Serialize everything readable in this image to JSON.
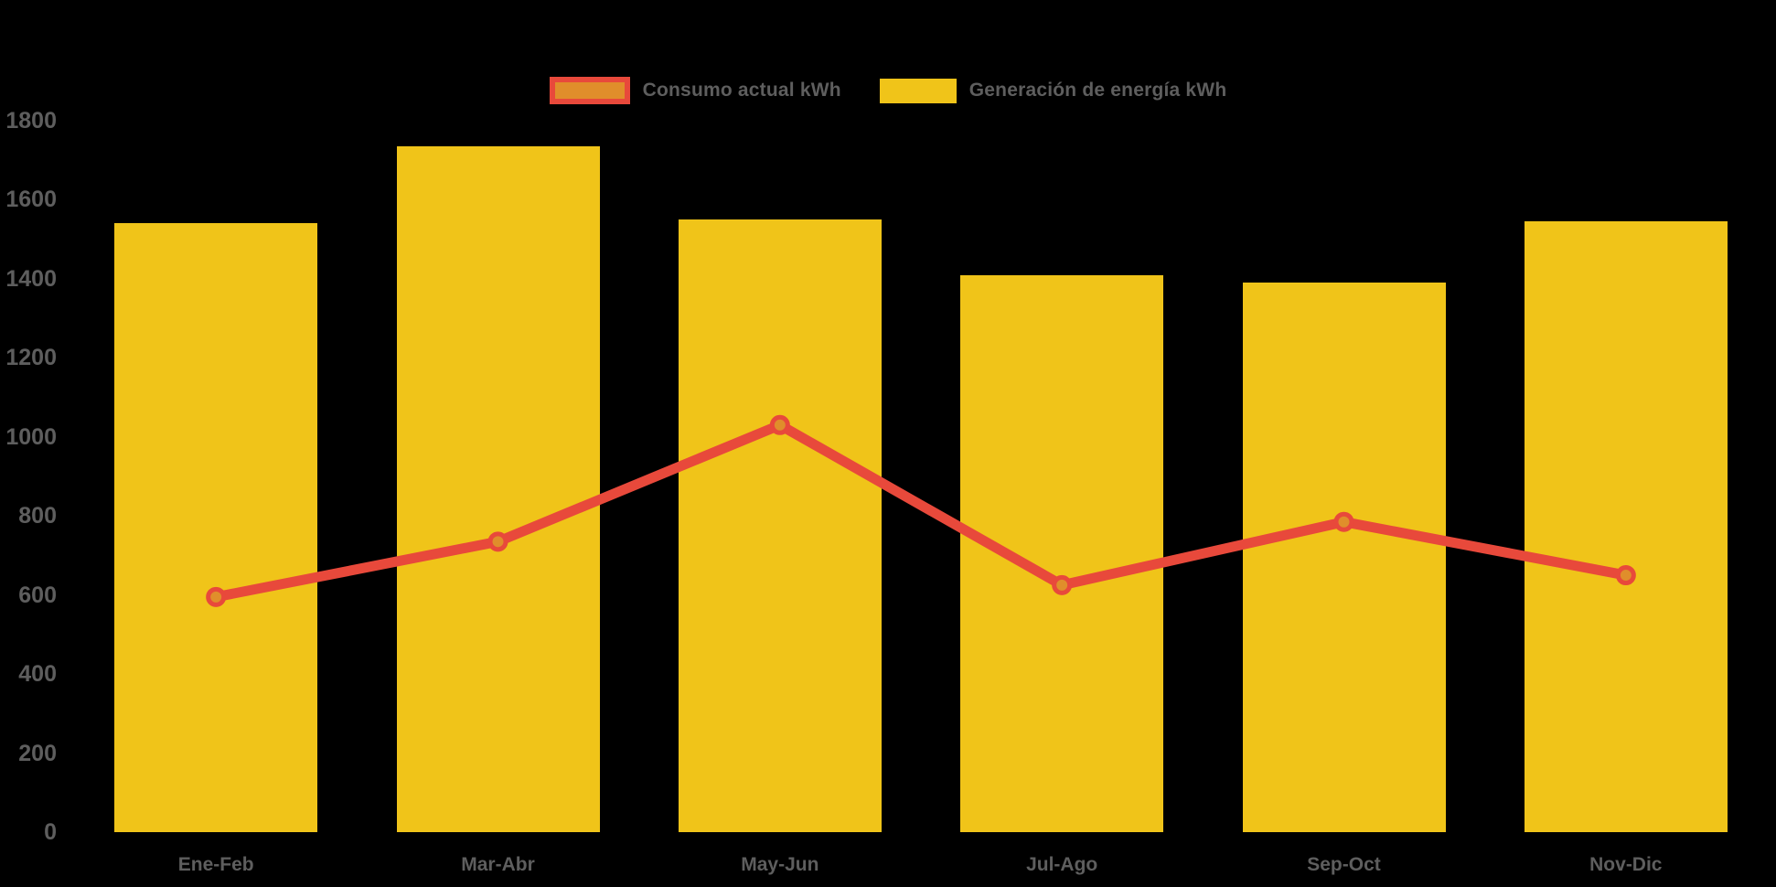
{
  "chart_data": {
    "type": "bar",
    "combo": "bar-with-line-overlay",
    "title": "",
    "xlabel": "",
    "ylabel": "",
    "categories": [
      "Ene-Feb",
      "Mar-Abr",
      "May-Jun",
      "Jul-Ago",
      "Sep-Oct",
      "Nov-Dic"
    ],
    "series": [
      {
        "name": "Consumo actual kWh",
        "type": "line",
        "line_color": "#E8493B",
        "point_fill_color": "#E08E2B",
        "values": [
          595,
          735,
          1030,
          625,
          785,
          650
        ]
      },
      {
        "name": "Generación de energía kWh",
        "type": "bar",
        "bar_color": "#F0C419",
        "values": [
          1540,
          1735,
          1550,
          1410,
          1390,
          1545
        ]
      }
    ],
    "ylim": [
      0,
      1800
    ],
    "ytick_labels": [
      "0",
      "200",
      "400",
      "600",
      "800",
      "1000",
      "1200",
      "1400",
      "1600",
      "1800"
    ],
    "grid": false,
    "legend_position": "top-center",
    "background_color": "#000000",
    "axis_text_color": "#5E5E5E"
  }
}
